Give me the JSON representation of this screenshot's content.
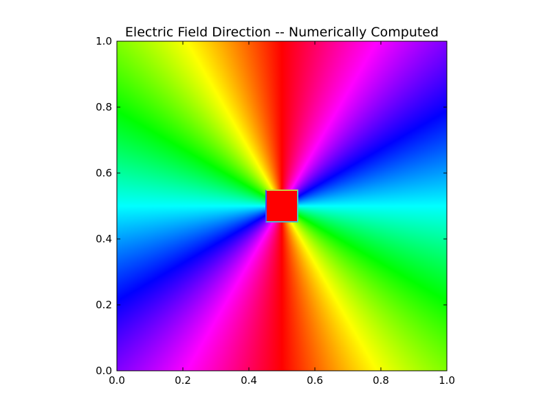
{
  "chart_data": {
    "type": "heatmap",
    "title": "Electric Field Direction -- Numerically Computed",
    "xlabel": "",
    "ylabel": "",
    "xlim": [
      0.0,
      1.0
    ],
    "ylim": [
      0.0,
      1.0
    ],
    "x_ticks": [
      0.0,
      0.2,
      0.4,
      0.6,
      0.8,
      1.0
    ],
    "y_ticks": [
      0.0,
      0.2,
      0.4,
      0.6,
      0.8,
      1.0
    ],
    "x_tick_labels": [
      "0.0",
      "0.2",
      "0.4",
      "0.6",
      "0.8",
      "1.0"
    ],
    "y_tick_labels": [
      "0.0",
      "0.2",
      "0.4",
      "0.6",
      "0.8",
      "1.0"
    ],
    "colormap": "hsv",
    "colormap_colors": [
      "#ff0000",
      "#ffff00",
      "#00ff00",
      "#00ffff",
      "#0000ff",
      "#ff00ff"
    ],
    "field_center": [
      0.5,
      0.5
    ],
    "conductor_square": {
      "x_range": [
        0.45,
        0.55
      ],
      "y_range": [
        0.45,
        0.55
      ],
      "color": "#ff0000"
    },
    "grid": false,
    "legend": "none"
  }
}
